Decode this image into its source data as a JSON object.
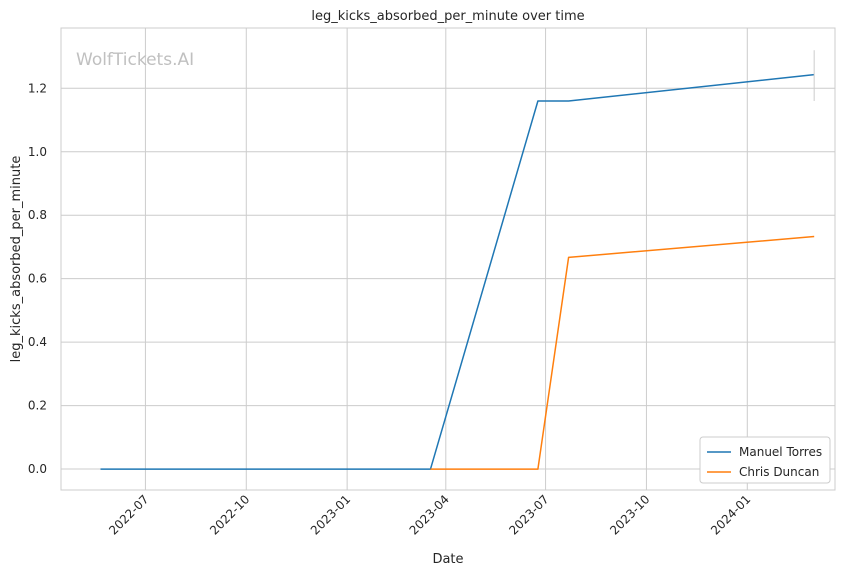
{
  "chart_data": {
    "type": "line",
    "title": "leg_kicks_absorbed_per_minute over time",
    "xlabel": "Date",
    "ylabel": "leg_kicks_absorbed_per_minute",
    "watermark": "WolfTickets.AI",
    "xlim": [
      "2022-04-15",
      "2024-03-21"
    ],
    "ylim": [
      -0.066,
      1.39
    ],
    "x_ticks": [
      "2022-07-01",
      "2022-10-01",
      "2023-01-01",
      "2023-04-01",
      "2023-07-01",
      "2023-10-01",
      "2024-01-01"
    ],
    "x_tick_labels": [
      "2022-07",
      "2022-10",
      "2023-01",
      "2023-04",
      "2023-07",
      "2023-10",
      "2024-01"
    ],
    "y_ticks": [
      0.0,
      0.2,
      0.4,
      0.6,
      0.8,
      1.0,
      1.2
    ],
    "y_tick_labels": [
      "0.0",
      "0.2",
      "0.4",
      "0.6",
      "0.8",
      "1.0",
      "1.2"
    ],
    "grid": true,
    "legend_position": "bottom-right",
    "series": [
      {
        "name": "Manuel Torres",
        "color": "#1f77b4",
        "points": [
          {
            "x": "2022-05-21",
            "y": 0.0
          },
          {
            "x": "2023-03-18",
            "y": 0.0
          },
          {
            "x": "2023-06-24",
            "y": 1.16
          },
          {
            "x": "2023-07-22",
            "y": 1.16
          },
          {
            "x": "2024-03-02",
            "y": 1.243
          }
        ]
      },
      {
        "name": "Chris Duncan",
        "color": "#ff7f0e",
        "points": [
          {
            "x": "2023-03-18",
            "y": 0.0
          },
          {
            "x": "2023-06-24",
            "y": 0.0
          },
          {
            "x": "2023-07-22",
            "y": 0.667
          },
          {
            "x": "2024-03-02",
            "y": 0.733
          }
        ]
      }
    ]
  }
}
